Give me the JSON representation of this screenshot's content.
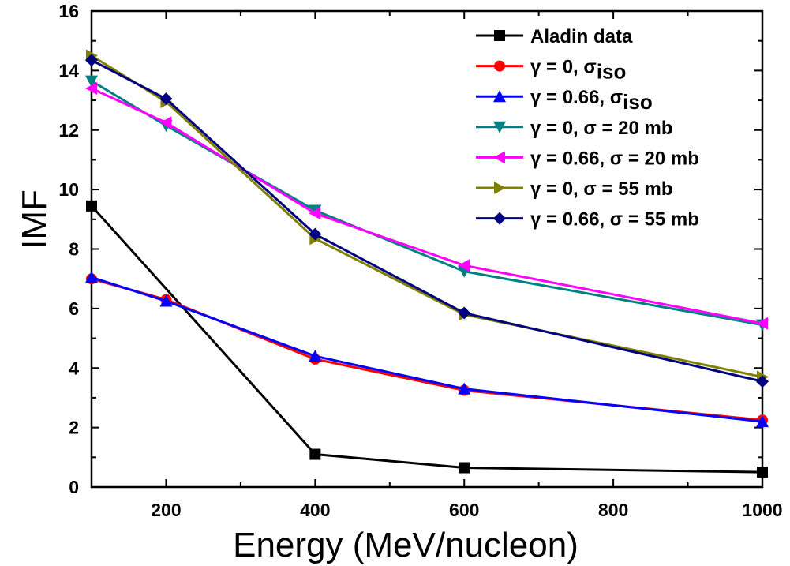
{
  "chart_data": {
    "type": "line",
    "xlabel": "Energy (MeV/nucleon)",
    "ylabel": "IMF",
    "xlim": [
      100,
      1000
    ],
    "ylim": [
      0,
      16
    ],
    "xticks": [
      200,
      400,
      600,
      800,
      1000
    ],
    "yticks": [
      0,
      2,
      4,
      6,
      8,
      10,
      12,
      14,
      16
    ],
    "grid": false,
    "legend_position": "top-right",
    "series": [
      {
        "name": "Aladin data",
        "label_parts": [
          {
            "text": "Aladin data"
          }
        ],
        "color": "#000000",
        "marker": "square",
        "x": [
          100,
          400,
          600,
          1000
        ],
        "y": [
          9.45,
          1.1,
          0.65,
          0.5
        ]
      },
      {
        "name": "γ = 0, σiso",
        "label_parts": [
          {
            "text": "γ = 0, "
          },
          {
            "text": "σ"
          },
          {
            "text": "iso",
            "sub": true
          }
        ],
        "color": "#ff0000",
        "marker": "circle",
        "x": [
          100,
          200,
          400,
          600,
          1000
        ],
        "y": [
          7.0,
          6.3,
          4.3,
          3.25,
          2.25
        ]
      },
      {
        "name": "γ = 0.66, σiso",
        "label_parts": [
          {
            "text": "γ = 0.66, "
          },
          {
            "text": "σ"
          },
          {
            "text": "iso",
            "sub": true
          }
        ],
        "color": "#0000ff",
        "marker": "triangle-up",
        "x": [
          100,
          200,
          400,
          600,
          1000
        ],
        "y": [
          7.05,
          6.25,
          4.4,
          3.3,
          2.2
        ]
      },
      {
        "name": "γ = 0, σ = 20 mb",
        "label_parts": [
          {
            "text": "γ = 0, σ = 20 mb"
          }
        ],
        "color": "#008080",
        "marker": "triangle-down",
        "x": [
          100,
          200,
          400,
          600,
          1000
        ],
        "y": [
          13.65,
          12.15,
          9.3,
          7.25,
          5.45
        ]
      },
      {
        "name": "γ = 0.66, σ = 20 mb",
        "label_parts": [
          {
            "text": "γ = 0.66, σ = 20 mb"
          }
        ],
        "color": "#ff00ff",
        "marker": "triangle-left",
        "x": [
          100,
          200,
          400,
          600,
          1000
        ],
        "y": [
          13.4,
          12.25,
          9.2,
          7.45,
          5.5
        ]
      },
      {
        "name": "γ = 0, σ = 55 mb",
        "label_parts": [
          {
            "text": "γ = 0, σ = 55 mb"
          }
        ],
        "color": "#808000",
        "marker": "triangle-right",
        "x": [
          100,
          200,
          400,
          600,
          1000
        ],
        "y": [
          14.5,
          12.95,
          8.35,
          5.8,
          3.7
        ]
      },
      {
        "name": "γ = 0.66, σ = 55 mb",
        "label_parts": [
          {
            "text": "γ = 0.66, σ = 55 mb"
          }
        ],
        "color": "#000080",
        "marker": "diamond",
        "x": [
          100,
          200,
          400,
          600,
          1000
        ],
        "y": [
          14.35,
          13.05,
          8.5,
          5.85,
          3.55
        ]
      }
    ]
  }
}
